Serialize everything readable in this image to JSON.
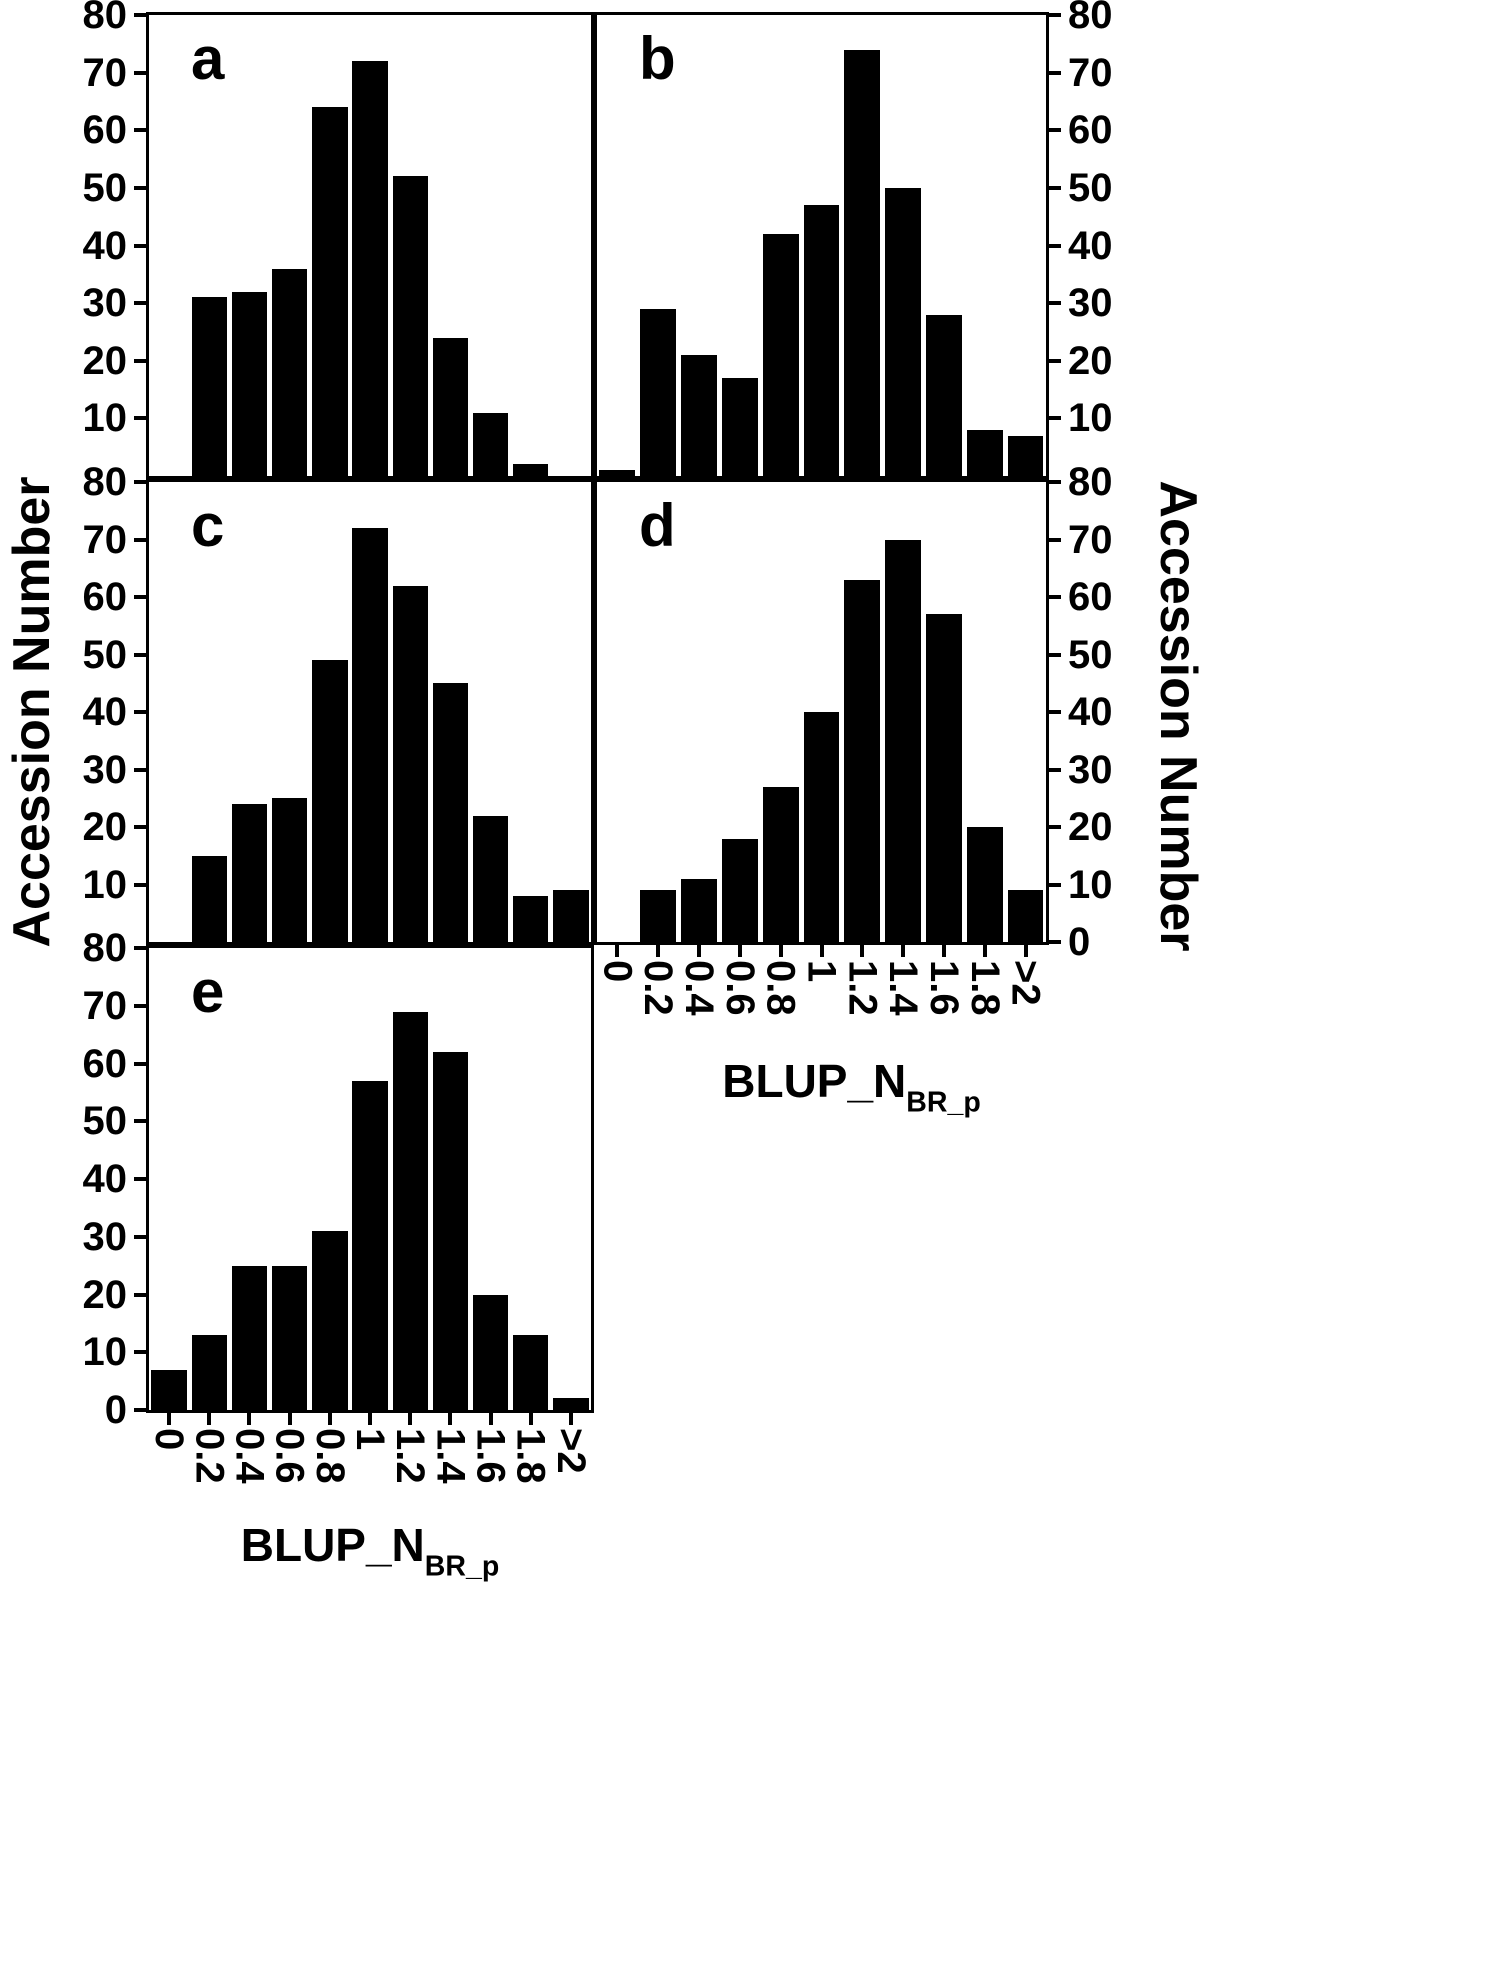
{
  "figure": {
    "y_axis_title_left": "Accession Number",
    "y_axis_title_right": "Accession Number",
    "x_axis_title_main": "BLUP_N",
    "x_axis_title_sub": "BR_p",
    "bar_color": "#000000",
    "background_color": "#ffffff"
  },
  "chart_data": [
    {
      "type": "bar",
      "panel_label": "a",
      "title": "",
      "xlabel": "BLUP_N_BR_p",
      "ylabel": "Accession Number",
      "categories": [
        "0",
        "0.2",
        "0.4",
        "0.6",
        "0.8",
        "1",
        "1.2",
        "1.4",
        "1.6",
        "1.8",
        ">2"
      ],
      "values": [
        0,
        31,
        32,
        36,
        64,
        72,
        52,
        24,
        11,
        2,
        0
      ],
      "ylim": [
        0,
        80
      ],
      "ytick_labels": [
        80,
        70,
        60,
        50,
        40,
        30,
        20,
        10
      ],
      "ytick_side": "left",
      "x_tick_labels_visible": false,
      "grid": false,
      "legend": false
    },
    {
      "type": "bar",
      "panel_label": "b",
      "title": "",
      "xlabel": "BLUP_N_BR_p",
      "ylabel": "Accession Number",
      "categories": [
        "0",
        "0.2",
        "0.4",
        "0.6",
        "0.8",
        "1",
        "1.2",
        "1.4",
        "1.6",
        "1.8",
        ">2"
      ],
      "values": [
        1,
        29,
        21,
        17,
        42,
        47,
        74,
        50,
        28,
        8,
        7
      ],
      "ylim": [
        0,
        80
      ],
      "ytick_labels": [
        80,
        70,
        60,
        50,
        40,
        30,
        20,
        10
      ],
      "ytick_side": "right",
      "x_tick_labels_visible": false,
      "grid": false,
      "legend": false
    },
    {
      "type": "bar",
      "panel_label": "c",
      "title": "",
      "xlabel": "BLUP_N_BR_p",
      "ylabel": "Accession Number",
      "categories": [
        "0",
        "0.2",
        "0.4",
        "0.6",
        "0.8",
        "1",
        "1.2",
        "1.4",
        "1.6",
        "1.8",
        ">2"
      ],
      "values": [
        0,
        15,
        24,
        25,
        49,
        72,
        62,
        45,
        22,
        8,
        9
      ],
      "ylim": [
        0,
        80
      ],
      "ytick_labels": [
        80,
        70,
        60,
        50,
        40,
        30,
        20,
        10
      ],
      "ytick_side": "left",
      "x_tick_labels_visible": false,
      "grid": false,
      "legend": false
    },
    {
      "type": "bar",
      "panel_label": "d",
      "title": "",
      "xlabel": "BLUP_N_BR_p",
      "ylabel": "Accession Number",
      "categories": [
        "0",
        "0.2",
        "0.4",
        "0.6",
        "0.8",
        "1",
        "1.2",
        "1.4",
        "1.6",
        "1.8",
        ">2"
      ],
      "values": [
        0,
        9,
        11,
        18,
        27,
        40,
        63,
        70,
        57,
        20,
        9
      ],
      "ylim": [
        0,
        80
      ],
      "ytick_labels": [
        80,
        70,
        60,
        50,
        40,
        30,
        20,
        10,
        0
      ],
      "ytick_side": "right",
      "x_tick_labels_visible": true,
      "grid": false,
      "legend": false
    },
    {
      "type": "bar",
      "panel_label": "e",
      "title": "",
      "xlabel": "BLUP_N_BR_p",
      "ylabel": "Accession Number",
      "categories": [
        "0",
        "0.2",
        "0.4",
        "0.6",
        "0.8",
        "1",
        "1.2",
        "1.4",
        "1.6",
        "1.8",
        ">2"
      ],
      "values": [
        7,
        13,
        25,
        25,
        31,
        57,
        69,
        62,
        20,
        13,
        2
      ],
      "ylim": [
        0,
        80
      ],
      "ytick_labels": [
        80,
        70,
        60,
        50,
        40,
        30,
        20,
        10,
        0
      ],
      "ytick_side": "left",
      "x_tick_labels_visible": true,
      "grid": false,
      "legend": false
    }
  ]
}
